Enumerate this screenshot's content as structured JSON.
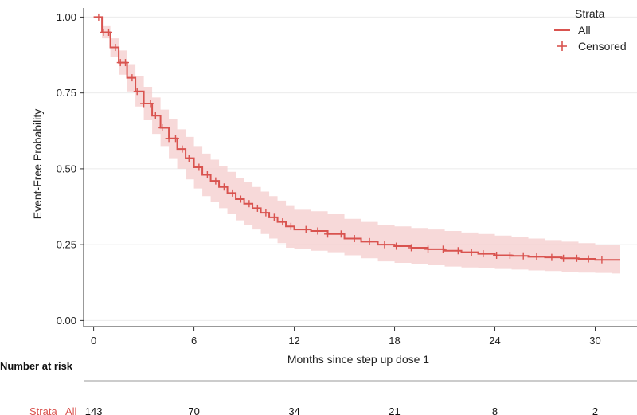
{
  "chart_data": {
    "type": "line",
    "subtype": "kaplan-meier",
    "title": "",
    "xlabel": "Months since step up dose 1",
    "ylabel": "Event-Free Probability",
    "xlim": [
      -0.6,
      32.5
    ],
    "ylim": [
      -0.02,
      1.03
    ],
    "x_ticks": [
      0,
      6,
      12,
      18,
      24,
      30
    ],
    "x_tick_labels": [
      "0",
      "6",
      "12",
      "18",
      "24",
      "30"
    ],
    "y_ticks": [
      0,
      0.25,
      0.5,
      0.75,
      1.0
    ],
    "y_tick_labels": [
      "0.00",
      "0.25",
      "0.50",
      "0.75",
      "1.00"
    ],
    "grid": true,
    "legend": {
      "title": "Strata",
      "placement": "top-right",
      "items": [
        {
          "label": "All",
          "kind": "line"
        },
        {
          "label": "Censored",
          "kind": "plus"
        }
      ]
    },
    "colors": {
      "series": "#d9534f",
      "band": "#f4cccc",
      "axis": "#333333",
      "grid": "#ebebeb"
    },
    "series": [
      {
        "name": "All",
        "x": [
          0,
          0.5,
          1.0,
          1.5,
          2.0,
          2.5,
          3.0,
          3.5,
          4.0,
          4.5,
          5.0,
          5.5,
          6.0,
          6.5,
          7.0,
          7.5,
          8.0,
          8.5,
          9.0,
          9.5,
          10.0,
          10.5,
          11.0,
          11.5,
          12.0,
          13.0,
          14.0,
          15.0,
          16.0,
          17.0,
          18.0,
          19.0,
          20.0,
          21.0,
          22.0,
          23.0,
          24.0,
          25.0,
          26.0,
          27.0,
          28.0,
          29.0,
          30.0,
          31.0,
          31.5
        ],
        "y": [
          1.0,
          0.95,
          0.9,
          0.85,
          0.8,
          0.755,
          0.715,
          0.675,
          0.635,
          0.6,
          0.565,
          0.535,
          0.505,
          0.48,
          0.46,
          0.44,
          0.42,
          0.4,
          0.385,
          0.37,
          0.355,
          0.34,
          0.325,
          0.31,
          0.3,
          0.295,
          0.285,
          0.27,
          0.26,
          0.25,
          0.245,
          0.24,
          0.235,
          0.23,
          0.225,
          0.22,
          0.215,
          0.213,
          0.21,
          0.208,
          0.205,
          0.203,
          0.2,
          0.2,
          0.2
        ],
        "ci_lower": [
          1.0,
          0.93,
          0.87,
          0.81,
          0.755,
          0.705,
          0.66,
          0.615,
          0.575,
          0.535,
          0.5,
          0.465,
          0.435,
          0.41,
          0.39,
          0.37,
          0.35,
          0.33,
          0.315,
          0.3,
          0.285,
          0.27,
          0.255,
          0.24,
          0.235,
          0.23,
          0.225,
          0.215,
          0.205,
          0.195,
          0.19,
          0.185,
          0.182,
          0.178,
          0.175,
          0.172,
          0.17,
          0.168,
          0.165,
          0.163,
          0.16,
          0.158,
          0.157,
          0.155,
          0.155
        ],
        "ci_upper": [
          1.0,
          0.97,
          0.93,
          0.89,
          0.845,
          0.805,
          0.77,
          0.735,
          0.695,
          0.665,
          0.63,
          0.605,
          0.575,
          0.55,
          0.53,
          0.51,
          0.49,
          0.47,
          0.455,
          0.44,
          0.425,
          0.41,
          0.395,
          0.38,
          0.365,
          0.36,
          0.35,
          0.335,
          0.325,
          0.315,
          0.31,
          0.305,
          0.3,
          0.295,
          0.29,
          0.285,
          0.28,
          0.275,
          0.27,
          0.265,
          0.26,
          0.255,
          0.25,
          0.248,
          0.245
        ],
        "censored_x": [
          0.3,
          0.6,
          0.9,
          1.3,
          1.6,
          1.9,
          2.3,
          2.6,
          3.0,
          3.4,
          3.7,
          4.1,
          4.5,
          4.9,
          5.3,
          5.7,
          6.3,
          6.8,
          7.3,
          7.8,
          8.3,
          8.8,
          9.3,
          9.8,
          10.3,
          10.8,
          11.3,
          11.8,
          12.7,
          13.4,
          14.0,
          14.8,
          15.6,
          16.5,
          17.4,
          18.1,
          19.0,
          20.0,
          20.9,
          21.8,
          22.6,
          23.3,
          24.1,
          24.9,
          25.7,
          26.5,
          27.4,
          28.1,
          28.9,
          29.6,
          30.4
        ]
      }
    ],
    "risk_table": {
      "title": "Number at risk",
      "row_label_prefix": "Strata",
      "row_label": "All",
      "times": [
        0,
        6,
        12,
        18,
        24,
        30
      ],
      "counts": [
        "143",
        "70",
        "34",
        "21",
        "8",
        "2"
      ]
    }
  }
}
